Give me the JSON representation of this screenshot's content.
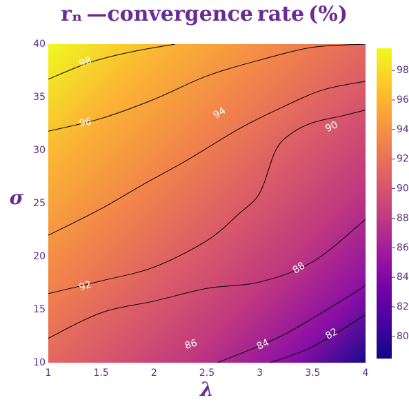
{
  "chart_data": {
    "type": "contour",
    "title": "rₙ —convergence rate (%)",
    "xlabel": "λ",
    "ylabel": "σ",
    "xlim": [
      1,
      4
    ],
    "ylim": [
      10,
      40
    ],
    "x_ticks": [
      "1",
      "1.5",
      "2",
      "2.5",
      "3",
      "3.5",
      "4"
    ],
    "y_ticks": [
      "10",
      "15",
      "20",
      "25",
      "30",
      "35",
      "40"
    ],
    "colorbar": {
      "range": [
        78.5,
        99.5
      ],
      "ticks": [
        "80",
        "82",
        "84",
        "86",
        "88",
        "90",
        "92",
        "94",
        "96",
        "98"
      ],
      "colorscale": "plasma"
    },
    "contour_lines": [
      {
        "level": 82,
        "points": [
          [
            3.1,
            10
          ],
          [
            3.5,
            11.5
          ],
          [
            4,
            14.5
          ]
        ]
      },
      {
        "level": 84,
        "points": [
          [
            2.6,
            10
          ],
          [
            3.2,
            12.5
          ],
          [
            3.8,
            16
          ],
          [
            4,
            17.3
          ]
        ]
      },
      {
        "level": 86,
        "points": [
          [
            1,
            12.3
          ],
          [
            1.5,
            14.7
          ],
          [
            2,
            15.8
          ],
          [
            2.5,
            17
          ],
          [
            3,
            17.6
          ],
          [
            3.5,
            19.5
          ],
          [
            4,
            23.5
          ]
        ]
      },
      {
        "level": 88,
        "points": [
          [
            1,
            16.5
          ],
          [
            1.5,
            17.7
          ],
          [
            2,
            19
          ],
          [
            2.5,
            21.5
          ],
          [
            2.8,
            24
          ],
          [
            3,
            26
          ],
          [
            3.15,
            30
          ],
          [
            3.3,
            31.6
          ],
          [
            3.5,
            32.6
          ],
          [
            3.8,
            33.3
          ],
          [
            4,
            33.8
          ]
        ]
      },
      {
        "level": 90,
        "points": [
          [
            1,
            22
          ],
          [
            1.5,
            24.5
          ],
          [
            1.9,
            26.8
          ],
          [
            2.3,
            29
          ],
          [
            2.8,
            32
          ],
          [
            3.2,
            34
          ],
          [
            3.6,
            35.7
          ],
          [
            4,
            36.5
          ]
        ]
      },
      {
        "level": 92,
        "points": [
          [
            1,
            31.8
          ],
          [
            1.5,
            33
          ],
          [
            2,
            34.8
          ],
          [
            2.5,
            37
          ],
          [
            3,
            38.5
          ],
          [
            3.5,
            39.7
          ],
          [
            4,
            40
          ]
        ]
      },
      {
        "level": 94,
        "points": [
          [
            1,
            36.7
          ],
          [
            1.4,
            38.3
          ],
          [
            1.8,
            39.3
          ],
          [
            2.2,
            40
          ]
        ]
      }
    ],
    "contour_labels": [
      {
        "text": "98",
        "x": 1.35,
        "y": 38.3,
        "angle": -20
      },
      {
        "text": "96",
        "x": 1.35,
        "y": 32.6,
        "angle": -10
      },
      {
        "text": "94",
        "x": 2.62,
        "y": 33.5,
        "angle": -33
      },
      {
        "text": "92",
        "x": 1.35,
        "y": 17.2,
        "angle": -18
      },
      {
        "text": "90",
        "x": 3.68,
        "y": 32.2,
        "angle": -25
      },
      {
        "text": "88",
        "x": 3.37,
        "y": 18.9,
        "angle": -33
      },
      {
        "text": "86",
        "x": 2.35,
        "y": 11.7,
        "angle": -18
      },
      {
        "text": "84",
        "x": 3.03,
        "y": 11.7,
        "angle": -25
      },
      {
        "text": "82",
        "x": 3.68,
        "y": 12.7,
        "angle": -30
      }
    ]
  },
  "colors": {
    "text": "#6b2c91",
    "tick_text": "#5b2a86",
    "contour_line": "#000000",
    "label_text": "#ffffff"
  }
}
